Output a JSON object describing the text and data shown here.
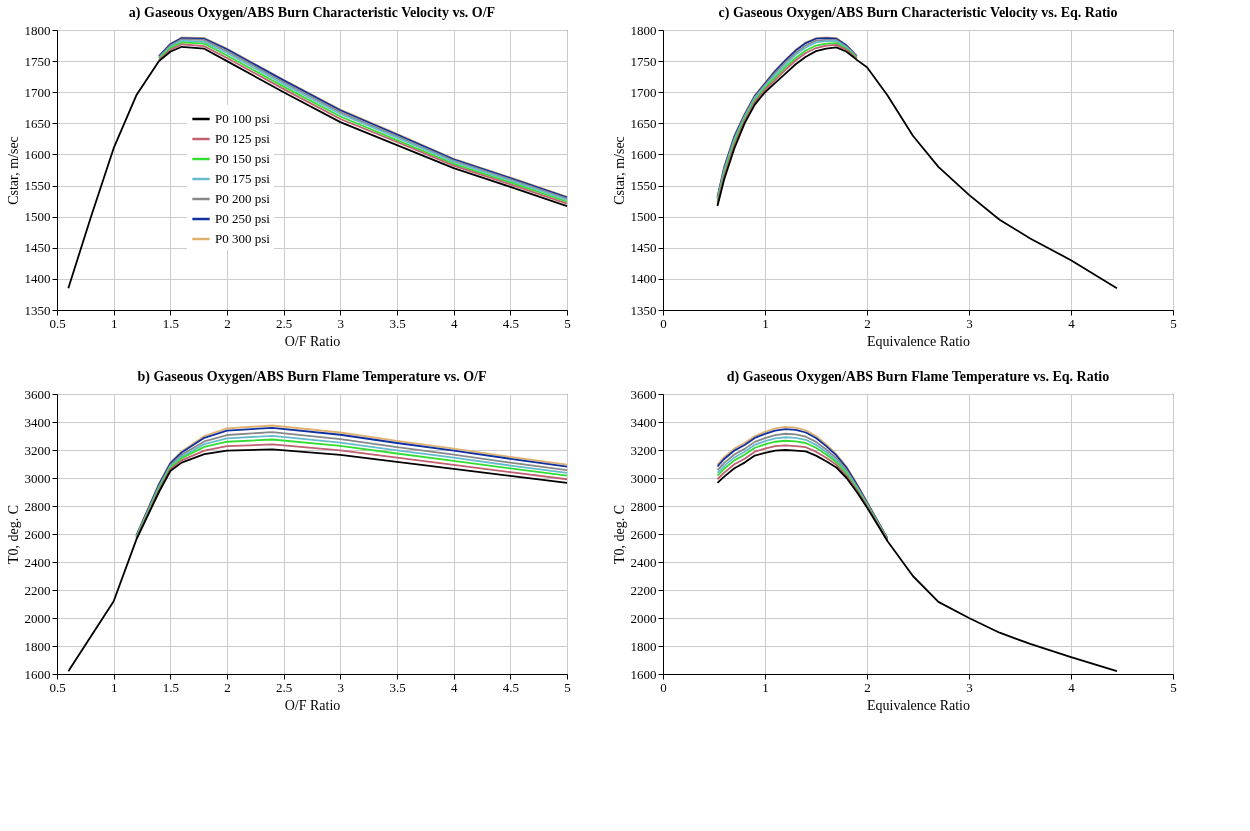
{
  "chart_data": [
    {
      "type": "line",
      "title": "a) Gaseous Oxygen/ABS Burn Characteristic Velocity vs. O/F",
      "xlabel": "O/F Ratio",
      "ylabel": "Cstar, m/sec",
      "xlim": [
        0.5,
        5
      ],
      "xticks": [
        0.5,
        1,
        1.5,
        2,
        2.5,
        3,
        3.5,
        4,
        4.5,
        5
      ],
      "ylim": [
        1350,
        1800
      ],
      "yticks": [
        1350,
        1400,
        1450,
        1500,
        1550,
        1600,
        1650,
        1700,
        1750,
        1800
      ],
      "grid": true,
      "legend": "left",
      "marker": "none",
      "line_style": "solid",
      "x": [
        0.6,
        0.8,
        1.0,
        1.2,
        1.4,
        1.5,
        1.6,
        1.8,
        2.0,
        2.5,
        3.0,
        3.5,
        4.0,
        4.5,
        5.0
      ],
      "series": [
        {
          "name": "P0 100 psi",
          "color": "#000000",
          "values": [
            1385,
            1500,
            1610,
            1695,
            1750,
            1765,
            1773,
            1770,
            1750,
            1700,
            1652,
            1615,
            1578,
            1548,
            1517
          ]
        },
        {
          "name": "P0 125 psi",
          "color": "#c06070",
          "values": [
            null,
            null,
            null,
            null,
            1752,
            1768,
            1777,
            1774,
            1755,
            1705,
            1657,
            1620,
            1582,
            1552,
            1521
          ]
        },
        {
          "name": "P0 150 psi",
          "color": "#33dd33",
          "values": [
            null,
            null,
            null,
            null,
            1754,
            1771,
            1780,
            1778,
            1759,
            1709,
            1661,
            1623,
            1585,
            1555,
            1524
          ]
        },
        {
          "name": "P0 175 psi",
          "color": "#66bbcc",
          "values": [
            null,
            null,
            null,
            null,
            1755,
            1773,
            1783,
            1781,
            1763,
            1713,
            1665,
            1627,
            1588,
            1558,
            1527
          ]
        },
        {
          "name": "P0 200 psi",
          "color": "#888888",
          "values": [
            null,
            null,
            null,
            null,
            1756,
            1775,
            1785,
            1784,
            1766,
            1716,
            1668,
            1629,
            1590,
            1560,
            1529
          ]
        },
        {
          "name": "P0 250 psi",
          "color": "#1030a0",
          "values": [
            null,
            null,
            null,
            null,
            1758,
            1777,
            1787,
            1786,
            1769,
            1719,
            1671,
            1632,
            1592,
            1562,
            1531
          ]
        },
        {
          "name": "P0 300 psi",
          "color": "#e0b070",
          "values": [
            null,
            null,
            null,
            null,
            1758,
            1778,
            1788,
            1787,
            1770,
            1720,
            1672,
            1633,
            1593,
            1563,
            1532
          ]
        }
      ]
    },
    {
      "type": "line",
      "title": "c) Gaseous Oxygen/ABS Burn Characteristic Velocity vs. Eq. Ratio",
      "xlabel": "Equivalence Ratio",
      "ylabel": "Cstar, m/sec",
      "xlim": [
        0,
        5
      ],
      "xticks": [
        0,
        1,
        2,
        3,
        4,
        5
      ],
      "ylim": [
        1350,
        1800
      ],
      "yticks": [
        1350,
        1400,
        1450,
        1500,
        1550,
        1600,
        1650,
        1700,
        1750,
        1800
      ],
      "grid": true,
      "legend": false,
      "marker": "none",
      "line_style": "solid",
      "x": [
        0.534,
        0.6,
        0.7,
        0.8,
        0.9,
        1.0,
        1.1,
        1.2,
        1.3,
        1.4,
        1.5,
        1.6,
        1.7,
        1.8,
        1.9,
        2.0,
        2.2,
        2.45,
        2.7,
        3.0,
        3.3,
        3.6,
        4.0,
        4.45
      ],
      "series": [
        {
          "color": "#000000",
          "values": [
            1517,
            1560,
            1610,
            1650,
            1680,
            1700,
            1715,
            1730,
            1745,
            1757,
            1766,
            1770,
            1772,
            1765,
            1752,
            1740,
            1695,
            1630,
            1580,
            1535,
            1495,
            1465,
            1430,
            1385
          ]
        },
        {
          "color": "#c06070",
          "values": [
            1521,
            1565,
            1615,
            1654,
            1684,
            1704,
            1720,
            1736,
            1751,
            1763,
            1771,
            1775,
            1776,
            1768,
            1754,
            null,
            null,
            null,
            null,
            null,
            null,
            null,
            null,
            null
          ]
        },
        {
          "color": "#33dd33",
          "values": [
            1524,
            1569,
            1619,
            1657,
            1687,
            1707,
            1724,
            1740,
            1755,
            1767,
            1775,
            1778,
            1779,
            1770,
            1755,
            null,
            null,
            null,
            null,
            null,
            null,
            null,
            null,
            null
          ]
        },
        {
          "color": "#66bbcc",
          "values": [
            1527,
            1573,
            1623,
            1660,
            1690,
            1710,
            1728,
            1744,
            1760,
            1772,
            1780,
            1782,
            1782,
            1772,
            1756,
            null,
            null,
            null,
            null,
            null,
            null,
            null,
            null,
            null
          ]
        },
        {
          "color": "#888888",
          "values": [
            1529,
            1576,
            1626,
            1662,
            1692,
            1712,
            1731,
            1748,
            1763,
            1775,
            1783,
            1784,
            1784,
            1773,
            1757,
            null,
            null,
            null,
            null,
            null,
            null,
            null,
            null,
            null
          ]
        },
        {
          "color": "#1030a0",
          "values": [
            1531,
            1579,
            1629,
            1664,
            1694,
            1714,
            1734,
            1751,
            1767,
            1779,
            1786,
            1787,
            1786,
            1775,
            1758,
            null,
            null,
            null,
            null,
            null,
            null,
            null,
            null,
            null
          ]
        },
        {
          "color": "#e0b070",
          "values": [
            1532,
            1580,
            1630,
            1665,
            1695,
            1715,
            1735,
            1752,
            1768,
            1780,
            1787,
            1788,
            1787,
            1775,
            1758,
            null,
            null,
            null,
            null,
            null,
            null,
            null,
            null,
            null
          ]
        }
      ]
    },
    {
      "type": "line",
      "title": "b) Gaseous Oxygen/ABS Burn Flame Temperature vs. O/F",
      "xlabel": "O/F Ratio",
      "ylabel": "T0, deg. C",
      "xlim": [
        0.5,
        5
      ],
      "xticks": [
        0.5,
        1,
        1.5,
        2,
        2.5,
        3,
        3.5,
        4,
        4.5,
        5
      ],
      "ylim": [
        1600,
        3600
      ],
      "yticks": [
        1600,
        1800,
        2000,
        2200,
        2400,
        2600,
        2800,
        3000,
        3200,
        3400,
        3600
      ],
      "grid": true,
      "legend": false,
      "marker": "none",
      "line_style": "solid",
      "x": [
        0.6,
        0.8,
        1.0,
        1.2,
        1.4,
        1.5,
        1.6,
        1.8,
        2.0,
        2.4,
        3.0,
        3.5,
        4.0,
        4.5,
        5.0
      ],
      "series": [
        {
          "color": "#000000",
          "values": [
            1620,
            1870,
            2120,
            2560,
            2900,
            3050,
            3110,
            3170,
            3195,
            3205,
            3165,
            3115,
            3065,
            3015,
            2965
          ]
        },
        {
          "color": "#c06070",
          "values": [
            null,
            null,
            null,
            2566,
            2912,
            3062,
            3126,
            3196,
            3227,
            3240,
            3197,
            3145,
            3094,
            3042,
            2991
          ]
        },
        {
          "color": "#33dd33",
          "values": [
            null,
            null,
            null,
            2572,
            2924,
            3074,
            3142,
            3222,
            3259,
            3275,
            3229,
            3175,
            3123,
            3069,
            3017
          ]
        },
        {
          "color": "#66bbcc",
          "values": [
            null,
            null,
            null,
            2577,
            2933,
            3083,
            3154,
            3242,
            3283,
            3301,
            3253,
            3198,
            3145,
            3089,
            3037
          ]
        },
        {
          "color": "#888888",
          "values": [
            null,
            null,
            null,
            2581,
            2942,
            3092,
            3166,
            3261,
            3307,
            3328,
            3277,
            3220,
            3167,
            3110,
            3056
          ]
        },
        {
          "color": "#1030a0",
          "values": [
            null,
            null,
            null,
            2587,
            2954,
            3104,
            3182,
            3287,
            3339,
            3358,
            3309,
            3250,
            3196,
            3137,
            3082
          ]
        },
        {
          "color": "#e0b070",
          "values": [
            null,
            null,
            null,
            2590,
            2960,
            3110,
            3190,
            3300,
            3355,
            3375,
            3325,
            3265,
            3210,
            3150,
            3095
          ]
        }
      ]
    },
    {
      "type": "line",
      "title": "d) Gaseous Oxygen/ABS Burn Flame Temperature vs. Eq. Ratio",
      "xlabel": "Equivalence Ratio",
      "ylabel": "T0, deg. C",
      "xlim": [
        0,
        5
      ],
      "xticks": [
        0,
        1,
        2,
        3,
        4,
        5
      ],
      "ylim": [
        1600,
        3600
      ],
      "yticks": [
        1600,
        1800,
        2000,
        2200,
        2400,
        2600,
        2800,
        3000,
        3200,
        3400,
        3600
      ],
      "grid": true,
      "legend": false,
      "marker": "none",
      "line_style": "solid",
      "x": [
        0.534,
        0.6,
        0.7,
        0.8,
        0.9,
        1.0,
        1.1,
        1.2,
        1.3,
        1.4,
        1.5,
        1.6,
        1.7,
        1.8,
        1.9,
        2.0,
        2.2,
        2.45,
        2.7,
        3.0,
        3.3,
        3.6,
        4.0,
        4.45
      ],
      "series": [
        {
          "color": "#000000",
          "values": [
            2965,
            3010,
            3070,
            3110,
            3160,
            3180,
            3195,
            3200,
            3195,
            3190,
            3160,
            3120,
            3075,
            3000,
            2900,
            2790,
            2550,
            2300,
            2115,
            2000,
            1895,
            1815,
            1720,
            1620
          ]
        },
        {
          "color": "#c06070",
          "values": [
            2991,
            3038,
            3098,
            3138,
            3188,
            3210,
            3227,
            3233,
            3228,
            3220,
            3188,
            3144,
            3094,
            3016,
            2912,
            2798,
            2554,
            null,
            null,
            null,
            null,
            null,
            null,
            null
          ]
        },
        {
          "color": "#33dd33",
          "values": [
            3017,
            3066,
            3126,
            3166,
            3216,
            3240,
            3259,
            3266,
            3261,
            3250,
            3216,
            3168,
            3113,
            3032,
            2924,
            2806,
            2558,
            null,
            null,
            null,
            null,
            null,
            null,
            null
          ]
        },
        {
          "color": "#66bbcc",
          "values": [
            3037,
            3087,
            3147,
            3187,
            3237,
            3263,
            3283,
            3291,
            3286,
            3273,
            3237,
            3186,
            3127,
            3044,
            2933,
            2812,
            2561,
            null,
            null,
            null,
            null,
            null,
            null,
            null
          ]
        },
        {
          "color": "#888888",
          "values": [
            3056,
            3108,
            3168,
            3208,
            3258,
            3285,
            3307,
            3316,
            3311,
            3295,
            3258,
            3204,
            3142,
            3056,
            2942,
            2818,
            2564,
            null,
            null,
            null,
            null,
            null,
            null,
            null
          ]
        },
        {
          "color": "#1030a0",
          "values": [
            3082,
            3136,
            3196,
            3236,
            3286,
            3315,
            3339,
            3349,
            3344,
            3325,
            3286,
            3228,
            3161,
            3072,
            2954,
            2826,
            2568,
            null,
            null,
            null,
            null,
            null,
            null,
            null
          ]
        },
        {
          "color": "#e0b070",
          "values": [
            3095,
            3150,
            3210,
            3250,
            3300,
            3330,
            3355,
            3365,
            3360,
            3340,
            3300,
            3240,
            3170,
            3080,
            2960,
            2830,
            2570,
            null,
            null,
            null,
            null,
            null,
            null,
            null
          ]
        }
      ]
    }
  ]
}
